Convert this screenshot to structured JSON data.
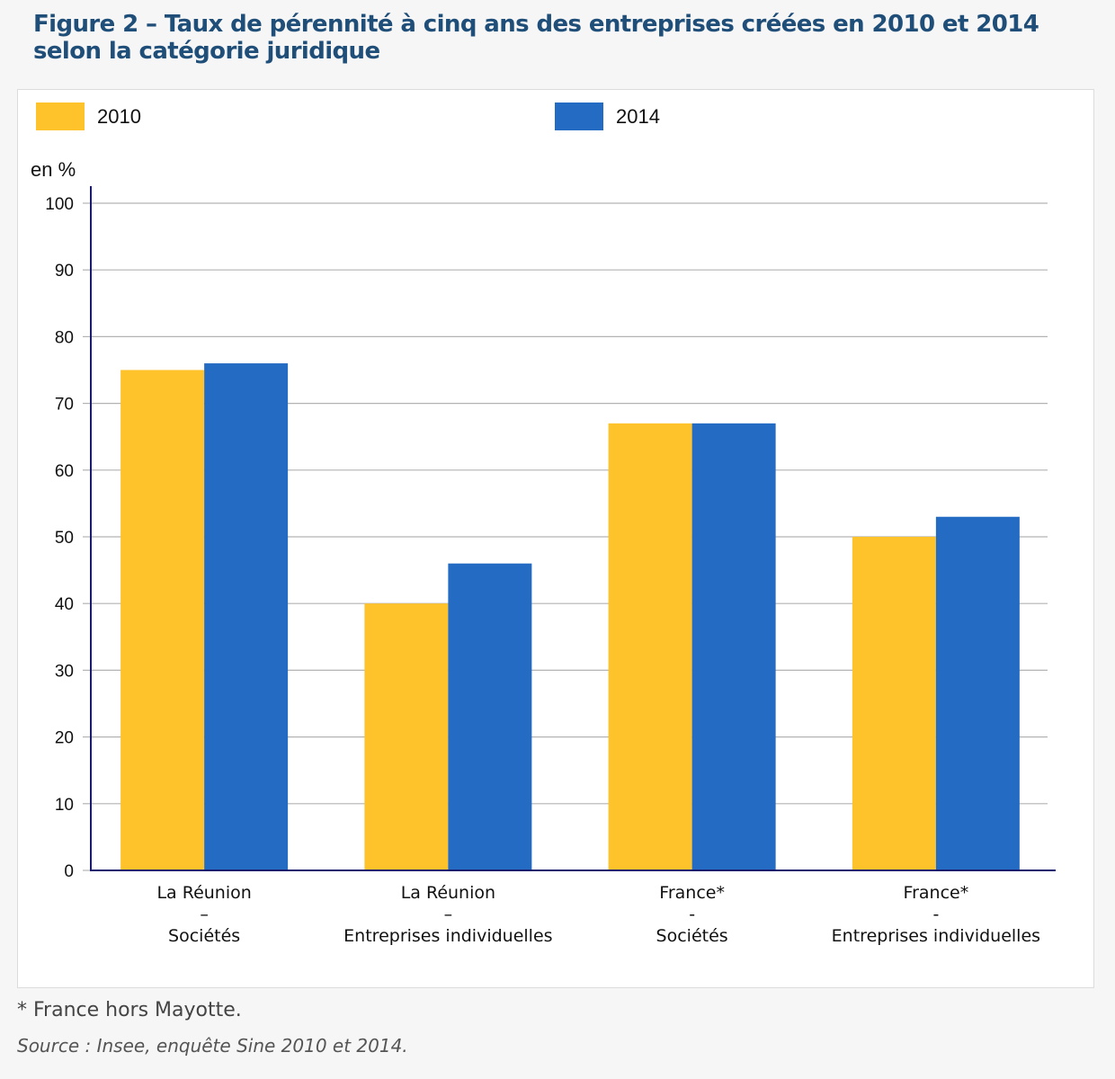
{
  "title": "Figure 2 – Taux de pérennité à cinq ans des entreprises créées en 2010 et 2014 selon la catégorie juridique",
  "footnote": "* France hors Mayotte.",
  "source": "Source : Insee, enquête Sine 2010 et 2014.",
  "colors": {
    "2010": "#fec22b",
    "2014": "#246bc4",
    "axis": "#1a1a6e",
    "grid": "#b3b3b3",
    "title": "#1f4e79"
  },
  "chart_data": {
    "type": "bar",
    "title": "Figure 2 – Taux de pérennité à cinq ans des entreprises créées en 2010 et 2014 selon la catégorie juridique",
    "xlabel": "",
    "ylabel": "en %",
    "ylim": [
      0,
      100
    ],
    "yticks": [
      0,
      10,
      20,
      30,
      40,
      50,
      60,
      70,
      80,
      90,
      100
    ],
    "grid": true,
    "legend_position": "top",
    "categories": [
      [
        "La Réunion",
        "–",
        "Sociétés"
      ],
      [
        "La Réunion",
        "–",
        "Entreprises individuelles"
      ],
      [
        "France*",
        "-",
        "Sociétés"
      ],
      [
        "France*",
        "-",
        "Entreprises individuelles"
      ]
    ],
    "series": [
      {
        "name": "2010",
        "color": "#fec22b",
        "values": [
          75,
          40,
          67,
          50
        ]
      },
      {
        "name": "2014",
        "color": "#246bc4",
        "values": [
          76,
          46,
          67,
          53
        ]
      }
    ]
  }
}
